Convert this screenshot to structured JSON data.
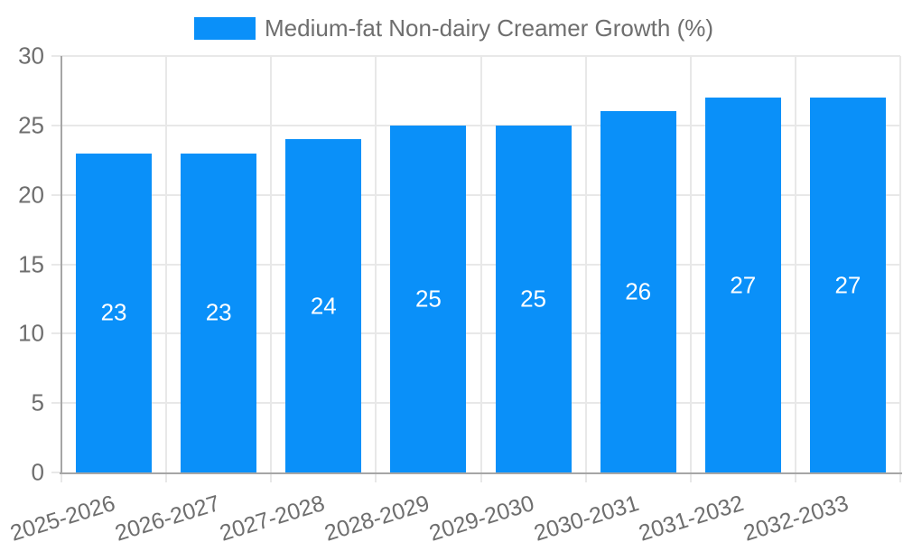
{
  "chart_data": {
    "type": "bar",
    "title": "Medium-fat Non-dairy Creamer Growth (%)",
    "categories": [
      "2025-2026",
      "2026-2027",
      "2027-2028",
      "2028-2029",
      "2029-2030",
      "2030-2031",
      "2031-2032",
      "2032-2033"
    ],
    "values": [
      23,
      23,
      24,
      25,
      25,
      26,
      27,
      27
    ],
    "value_labels": [
      "23",
      "23",
      "24",
      "25",
      "25",
      "26",
      "27",
      "27"
    ],
    "xlabel": "",
    "ylabel": "",
    "ylim": [
      0,
      30
    ],
    "yticks": [
      0,
      5,
      10,
      15,
      20,
      25,
      30
    ],
    "ytick_labels": [
      "0",
      "5",
      "10",
      "15",
      "20",
      "25",
      "30"
    ],
    "grid": true,
    "legend_position": "top-center",
    "colors": {
      "bar": "#0a90f9",
      "axis_line": "#a6a6a6",
      "grid_line": "#e8e8e8",
      "tick_line": "#e8e8e8",
      "text": "#6e6e6e",
      "bar_label_text": "#ffffff",
      "background": "#ffffff"
    }
  }
}
